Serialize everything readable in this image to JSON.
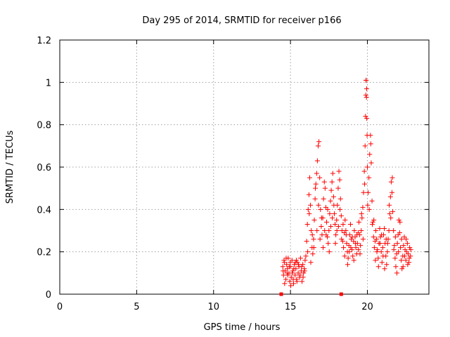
{
  "chart_data": {
    "type": "scatter",
    "title": "Day 295 of 2014, SRMTID for receiver p166",
    "xlabel": "GPS time / hours",
    "ylabel": "SRMTID / TECUs",
    "xlim": [
      0,
      24
    ],
    "ylim": [
      0,
      1.2
    ],
    "xticks": [
      0,
      5,
      10,
      15,
      20
    ],
    "xtick_labels": [
      "0",
      "5",
      "10",
      "15",
      "20"
    ],
    "yticks": [
      0,
      0.2,
      0.4,
      0.6,
      0.8,
      1.0,
      1.2
    ],
    "ytick_labels": [
      "0",
      "0.2",
      "0.4",
      "0.6",
      "0.8",
      "1",
      "1.2"
    ],
    "grid": true,
    "marker": "+",
    "series_color": "#ff0000",
    "edge_marks": [
      {
        "x": 14.4,
        "y": 0
      },
      {
        "x": 18.3,
        "y": 0
      }
    ],
    "series": [
      {
        "name": "SRMTID",
        "points": [
          [
            14.5,
            0.13
          ],
          [
            14.55,
            0.09
          ],
          [
            14.6,
            0.15
          ],
          [
            14.65,
            0.11
          ],
          [
            14.7,
            0.07
          ],
          [
            14.75,
            0.14
          ],
          [
            14.8,
            0.12
          ],
          [
            14.85,
            0.17
          ],
          [
            14.9,
            0.1
          ],
          [
            14.95,
            0.06
          ],
          [
            15.0,
            0.13
          ],
          [
            15.05,
            0.08
          ],
          [
            15.1,
            0.16
          ],
          [
            15.15,
            0.11
          ],
          [
            15.2,
            0.05
          ],
          [
            15.25,
            0.14
          ],
          [
            15.3,
            0.09
          ],
          [
            15.35,
            0.12
          ],
          [
            15.4,
            0.07
          ],
          [
            15.45,
            0.15
          ],
          [
            15.5,
            0.1
          ],
          [
            15.55,
            0.13
          ],
          [
            15.6,
            0.08
          ],
          [
            15.65,
            0.17
          ],
          [
            15.7,
            0.11
          ],
          [
            15.75,
            0.06
          ],
          [
            15.8,
            0.14
          ],
          [
            15.85,
            0.1
          ],
          [
            15.9,
            0.12
          ],
          [
            15.95,
            0.16
          ],
          [
            14.52,
            0.11
          ],
          [
            14.62,
            0.05
          ],
          [
            14.72,
            0.17
          ],
          [
            14.82,
            0.09
          ],
          [
            14.92,
            0.13
          ],
          [
            15.02,
            0.04
          ],
          [
            15.12,
            0.1
          ],
          [
            15.22,
            0.12
          ],
          [
            15.32,
            0.15
          ],
          [
            15.42,
            0.06
          ],
          [
            15.52,
            0.14
          ],
          [
            15.62,
            0.09
          ],
          [
            15.72,
            0.13
          ],
          [
            15.82,
            0.08
          ],
          [
            15.92,
            0.11
          ],
          [
            14.58,
            0.16
          ],
          [
            14.78,
            0.1
          ],
          [
            14.98,
            0.15
          ],
          [
            15.18,
            0.07
          ],
          [
            15.38,
            0.16
          ],
          [
            16.0,
            0.18
          ],
          [
            16.05,
            0.25
          ],
          [
            16.1,
            0.33
          ],
          [
            16.15,
            0.4
          ],
          [
            16.2,
            0.47
          ],
          [
            16.25,
            0.55
          ],
          [
            16.3,
            0.42
          ],
          [
            16.35,
            0.3
          ],
          [
            16.4,
            0.22
          ],
          [
            16.45,
            0.19
          ],
          [
            16.5,
            0.26
          ],
          [
            16.55,
            0.35
          ],
          [
            16.6,
            0.45
          ],
          [
            16.65,
            0.52
          ],
          [
            16.7,
            0.57
          ],
          [
            16.75,
            0.63
          ],
          [
            16.8,
            0.7
          ],
          [
            16.85,
            0.72
          ],
          [
            16.9,
            0.55
          ],
          [
            16.95,
            0.4
          ],
          [
            17.0,
            0.32
          ],
          [
            17.05,
            0.28
          ],
          [
            17.1,
            0.36
          ],
          [
            17.15,
            0.45
          ],
          [
            17.2,
            0.53
          ],
          [
            17.25,
            0.5
          ],
          [
            17.3,
            0.41
          ],
          [
            17.35,
            0.34
          ],
          [
            17.4,
            0.27
          ],
          [
            17.45,
            0.24
          ],
          [
            17.5,
            0.3
          ],
          [
            17.55,
            0.38
          ],
          [
            17.6,
            0.44
          ],
          [
            17.65,
            0.49
          ],
          [
            17.7,
            0.53
          ],
          [
            17.75,
            0.57
          ],
          [
            17.8,
            0.46
          ],
          [
            17.85,
            0.38
          ],
          [
            17.9,
            0.33
          ],
          [
            17.95,
            0.28
          ],
          [
            18.0,
            0.35
          ],
          [
            18.05,
            0.42
          ],
          [
            18.1,
            0.5
          ],
          [
            18.15,
            0.58
          ],
          [
            18.2,
            0.54
          ],
          [
            18.25,
            0.45
          ],
          [
            18.3,
            0.37
          ],
          [
            18.35,
            0.3
          ],
          [
            18.4,
            0.25
          ],
          [
            18.45,
            0.22
          ],
          [
            18.5,
            0.29
          ],
          [
            18.55,
            0.35
          ],
          [
            18.6,
            0.3
          ],
          [
            18.65,
            0.24
          ],
          [
            18.7,
            0.2
          ],
          [
            18.75,
            0.17
          ],
          [
            18.8,
            0.23
          ],
          [
            18.85,
            0.28
          ],
          [
            18.9,
            0.33
          ],
          [
            18.95,
            0.26
          ],
          [
            19.0,
            0.21
          ],
          [
            19.05,
            0.18
          ],
          [
            19.1,
            0.25
          ],
          [
            19.15,
            0.3
          ],
          [
            19.2,
            0.27
          ],
          [
            19.25,
            0.22
          ],
          [
            19.3,
            0.19
          ],
          [
            19.35,
            0.24
          ],
          [
            19.4,
            0.29
          ],
          [
            19.45,
            0.34
          ],
          [
            19.5,
            0.28
          ],
          [
            19.55,
            0.23
          ],
          [
            19.6,
            0.3
          ],
          [
            19.65,
            0.36
          ],
          [
            19.7,
            0.41
          ],
          [
            19.75,
            0.48
          ],
          [
            19.8,
            0.58
          ],
          [
            19.85,
            0.7
          ],
          [
            19.88,
            0.84
          ],
          [
            19.9,
            0.94
          ],
          [
            19.92,
            1.01
          ],
          [
            19.95,
            0.97
          ],
          [
            19.98,
            0.75
          ],
          [
            20.0,
            0.6
          ],
          [
            20.05,
            0.48
          ],
          [
            20.1,
            0.55
          ],
          [
            20.15,
            0.66
          ],
          [
            20.2,
            0.75
          ],
          [
            20.25,
            0.62
          ],
          [
            20.3,
            0.44
          ],
          [
            20.35,
            0.34
          ],
          [
            20.4,
            0.27
          ],
          [
            20.45,
            0.22
          ],
          [
            20.5,
            0.25
          ],
          [
            20.55,
            0.3
          ],
          [
            20.6,
            0.26
          ],
          [
            20.65,
            0.21
          ],
          [
            20.7,
            0.17
          ],
          [
            20.75,
            0.24
          ],
          [
            20.8,
            0.31
          ],
          [
            20.85,
            0.27
          ],
          [
            20.9,
            0.2
          ],
          [
            20.95,
            0.15
          ],
          [
            21.0,
            0.22
          ],
          [
            21.05,
            0.28
          ],
          [
            21.1,
            0.31
          ],
          [
            21.15,
            0.24
          ],
          [
            21.2,
            0.18
          ],
          [
            21.25,
            0.14
          ],
          [
            21.3,
            0.2
          ],
          [
            21.35,
            0.26
          ],
          [
            21.4,
            0.3
          ],
          [
            21.45,
            0.38
          ],
          [
            21.5,
            0.46
          ],
          [
            21.55,
            0.53
          ],
          [
            21.6,
            0.48
          ],
          [
            21.65,
            0.39
          ],
          [
            21.7,
            0.3
          ],
          [
            21.75,
            0.23
          ],
          [
            21.8,
            0.17
          ],
          [
            21.85,
            0.13
          ],
          [
            21.9,
            0.19
          ],
          [
            21.95,
            0.24
          ],
          [
            22.0,
            0.28
          ],
          [
            22.05,
            0.35
          ],
          [
            22.1,
            0.29
          ],
          [
            22.15,
            0.22
          ],
          [
            22.2,
            0.16
          ],
          [
            22.25,
            0.12
          ],
          [
            22.3,
            0.18
          ],
          [
            22.35,
            0.23
          ],
          [
            22.4,
            0.27
          ],
          [
            22.45,
            0.21
          ],
          [
            22.5,
            0.16
          ],
          [
            22.55,
            0.2
          ],
          [
            22.6,
            0.24
          ],
          [
            22.65,
            0.19
          ],
          [
            22.7,
            0.15
          ],
          [
            22.75,
            0.22
          ],
          [
            22.8,
            0.18
          ],
          [
            16.12,
            0.2
          ],
          [
            16.32,
            0.15
          ],
          [
            16.52,
            0.22
          ],
          [
            16.72,
            0.3
          ],
          [
            16.92,
            0.26
          ],
          [
            17.12,
            0.22
          ],
          [
            17.32,
            0.28
          ],
          [
            17.52,
            0.2
          ],
          [
            17.72,
            0.36
          ],
          [
            17.92,
            0.24
          ],
          [
            18.12,
            0.32
          ],
          [
            18.32,
            0.26
          ],
          [
            18.52,
            0.18
          ],
          [
            18.72,
            0.14
          ],
          [
            18.92,
            0.22
          ],
          [
            19.12,
            0.16
          ],
          [
            19.32,
            0.28
          ],
          [
            19.52,
            0.19
          ],
          [
            19.72,
            0.26
          ],
          [
            19.96,
            0.83
          ],
          [
            20.12,
            0.4
          ],
          [
            20.32,
            0.33
          ],
          [
            20.52,
            0.16
          ],
          [
            20.72,
            0.13
          ],
          [
            20.92,
            0.28
          ],
          [
            21.12,
            0.12
          ],
          [
            21.32,
            0.24
          ],
          [
            21.52,
            0.36
          ],
          [
            21.72,
            0.21
          ],
          [
            21.92,
            0.1
          ],
          [
            22.12,
            0.34
          ],
          [
            22.32,
            0.13
          ],
          [
            22.52,
            0.26
          ],
          [
            22.72,
            0.17
          ],
          [
            16.22,
            0.38
          ],
          [
            16.42,
            0.28
          ],
          [
            16.62,
            0.5
          ],
          [
            16.82,
            0.42
          ],
          [
            17.02,
            0.36
          ],
          [
            17.22,
            0.3
          ],
          [
            17.42,
            0.4
          ],
          [
            17.62,
            0.32
          ],
          [
            17.82,
            0.42
          ],
          [
            18.02,
            0.3
          ],
          [
            18.22,
            0.4
          ],
          [
            18.42,
            0.33
          ],
          [
            18.62,
            0.28
          ],
          [
            18.82,
            0.2
          ],
          [
            19.02,
            0.27
          ],
          [
            19.22,
            0.24
          ],
          [
            19.42,
            0.21
          ],
          [
            19.62,
            0.38
          ],
          [
            19.82,
            0.52
          ],
          [
            20.02,
            0.42
          ],
          [
            20.22,
            0.71
          ],
          [
            20.42,
            0.35
          ],
          [
            20.62,
            0.2
          ],
          [
            20.82,
            0.24
          ],
          [
            21.02,
            0.18
          ],
          [
            21.22,
            0.26
          ],
          [
            21.42,
            0.42
          ],
          [
            21.62,
            0.55
          ],
          [
            21.82,
            0.27
          ],
          [
            22.02,
            0.2
          ],
          [
            22.22,
            0.26
          ],
          [
            22.42,
            0.18
          ],
          [
            22.62,
            0.14
          ],
          [
            22.82,
            0.21
          ],
          [
            19.91,
            1.01
          ],
          [
            19.94,
            0.93
          ]
        ]
      }
    ]
  }
}
